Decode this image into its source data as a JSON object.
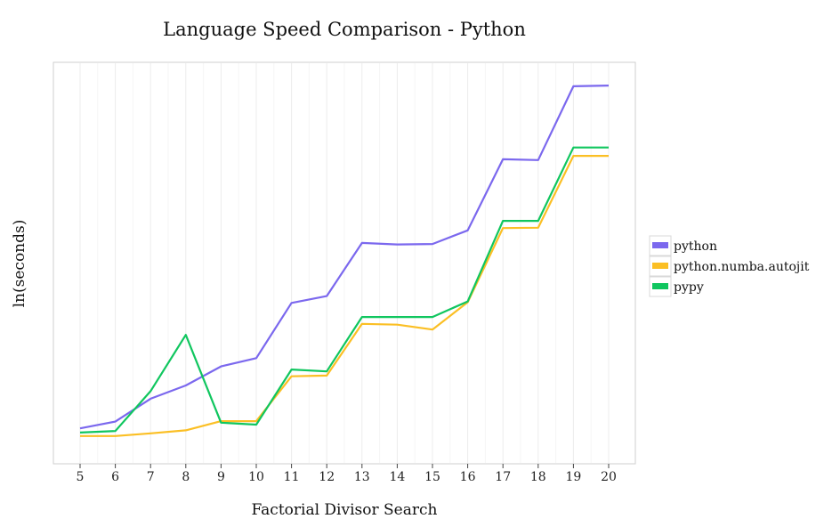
{
  "chart_data": {
    "type": "line",
    "title": "Language Speed Comparison - Python",
    "xlabel": "Factorial Divisor Search",
    "ylabel": "ln(seconds)",
    "x": [
      5,
      6,
      7,
      8,
      9,
      10,
      11,
      12,
      13,
      14,
      15,
      16,
      17,
      18,
      19,
      20
    ],
    "x_tick_labels": [
      "5",
      "6",
      "7",
      "8",
      "9",
      "10",
      "11",
      "12",
      "13",
      "14",
      "15",
      "16",
      "17",
      "18",
      "19",
      "20"
    ],
    "y_tick_labels": [],
    "ylim": [
      0,
      100
    ],
    "grid": true,
    "legend_position": "right",
    "series": [
      {
        "name": "python",
        "color": "#7b68ee",
        "values": [
          6.5,
          8.3,
          14.3,
          17.8,
          22.8,
          25.0,
          39.5,
          41.3,
          55.3,
          54.9,
          55.0,
          58.6,
          77.3,
          77.1,
          96.5,
          96.7
        ]
      },
      {
        "name": "python.numba.autojit",
        "color": "#fbbf24",
        "values": [
          4.5,
          4.5,
          5.2,
          6.0,
          8.4,
          8.4,
          20.2,
          20.4,
          34.0,
          33.8,
          32.5,
          39.7,
          59.2,
          59.3,
          78.2,
          78.2
        ]
      },
      {
        "name": "pypy",
        "color": "#10c65f",
        "values": [
          5.4,
          5.8,
          16.3,
          31.1,
          8.0,
          7.5,
          22.0,
          21.5,
          35.8,
          35.8,
          35.8,
          39.9,
          61.1,
          61.1,
          80.4,
          80.4
        ]
      }
    ]
  }
}
